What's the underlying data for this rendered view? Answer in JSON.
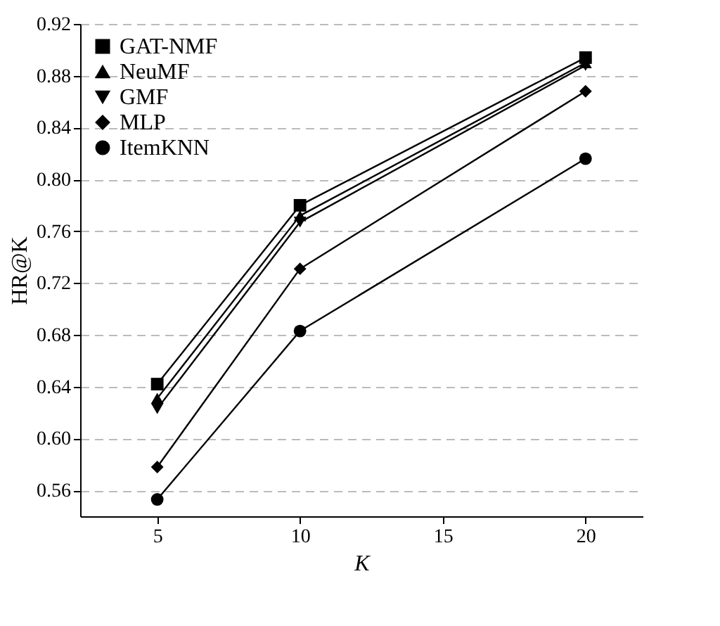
{
  "chart_data": {
    "type": "line",
    "xlabel": "K",
    "ylabel": "HR@K",
    "x": [
      5,
      10,
      20
    ],
    "series": [
      {
        "name": "GAT-NMF",
        "color": "#000000",
        "marker": "square",
        "values": [
          0.642,
          0.78,
          0.894
        ]
      },
      {
        "name": "NeuMF",
        "color": "#000000",
        "marker": "triangle",
        "values": [
          0.631,
          0.772,
          0.89
        ]
      },
      {
        "name": "GMF",
        "color": "#000000",
        "marker": "triangle-down",
        "values": [
          0.623,
          0.767,
          0.888
        ]
      },
      {
        "name": "MLP",
        "color": "#000000",
        "marker": "diamond",
        "values": [
          0.578,
          0.731,
          0.868
        ]
      },
      {
        "name": "ItemKNN",
        "color": "#000000",
        "marker": "circle",
        "values": [
          0.553,
          0.683,
          0.816
        ]
      }
    ],
    "xlim": [
      2.3,
      22
    ],
    "xticks": [
      5,
      10,
      15,
      20
    ],
    "ylim": [
      0.54,
      0.92
    ],
    "yticks": [
      0.56,
      {
        "value": 0.6,
        "label": "0.60"
      },
      0.64,
      0.68,
      0.72,
      0.76,
      {
        "value": 0.8,
        "label": "0.80"
      },
      0.84,
      0.88,
      0.92
    ],
    "grid": "y",
    "legend": "top left",
    "line_style": "solid"
  }
}
